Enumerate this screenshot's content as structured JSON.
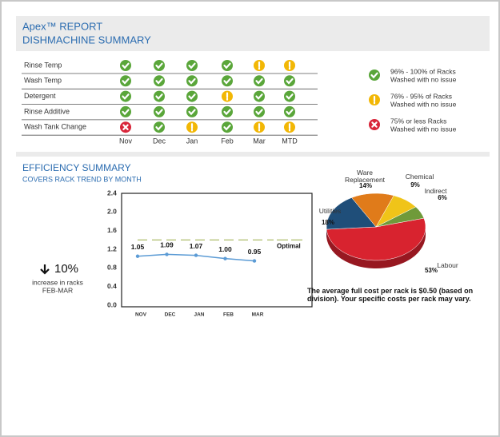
{
  "header": {
    "title": "Apex™ REPORT",
    "subtitle": "DISHMACHINE SUMMARY"
  },
  "status_table": {
    "columns": [
      "Nov",
      "Dec",
      "Jan",
      "Feb",
      "Mar",
      "MTD"
    ],
    "status_colors": {
      "good": "#5aa63a",
      "warn": "#f2b705",
      "bad": "#d8263a"
    },
    "rows": [
      {
        "label": "Rinse Temp",
        "statuses": [
          "good",
          "good",
          "good",
          "good",
          "warn",
          "warn"
        ]
      },
      {
        "label": "Wash Temp",
        "statuses": [
          "good",
          "good",
          "good",
          "good",
          "good",
          "good"
        ]
      },
      {
        "label": "Detergent",
        "statuses": [
          "good",
          "good",
          "good",
          "warn",
          "good",
          "good"
        ]
      },
      {
        "label": "Rinse Additive",
        "statuses": [
          "good",
          "good",
          "good",
          "good",
          "good",
          "good"
        ]
      },
      {
        "label": "Wash Tank Change",
        "statuses": [
          "bad",
          "good",
          "warn",
          "good",
          "warn",
          "warn"
        ]
      }
    ]
  },
  "legend": [
    {
      "status": "good",
      "line1": "96% - 100% of Racks",
      "line2": "Washed with no issue"
    },
    {
      "status": "warn",
      "line1": "76% - 95% of Racks",
      "line2": "Washed with no issue"
    },
    {
      "status": "bad",
      "line1": "75% or less Racks",
      "line2": "Washed with no issue"
    }
  ],
  "efficiency": {
    "title": "EFFICIENCY SUMMARY",
    "subtitle": "COVERS RACK TREND BY MONTH",
    "change": "10%",
    "change_note": "increase in racks",
    "change_period": "FEB-MAR",
    "note": "The average full cost per rack is $0.50 (based on division).  Your specific costs per rack may vary."
  },
  "line_chart": {
    "type": "line",
    "categories": [
      "NOV",
      "DEC",
      "JAN",
      "FEB",
      "MAR"
    ],
    "values": [
      1.05,
      1.09,
      1.07,
      1.0,
      0.95
    ],
    "value_labels": [
      "1.05",
      "1.09",
      "1.07",
      "1.00",
      "0.95"
    ],
    "color": "#5b9bd5",
    "ylim": [
      0,
      2.4
    ],
    "yticks": [
      {
        "value": 0,
        "label": "0.0"
      },
      0.4,
      0.8,
      1.2,
      1.6,
      {
        "value": 2,
        "label": "2.0"
      },
      2.4
    ],
    "optimal": {
      "label": "Optimal",
      "value": 1.4,
      "color": "#a4b65a"
    }
  },
  "pie_chart": {
    "type": "pie",
    "labels": [
      "Labour",
      "Utilities",
      "Ware Replacement",
      "Chemical",
      "Indirect"
    ],
    "values": [
      53,
      18,
      14,
      9,
      6
    ],
    "value_labels": [
      "53%",
      "18%",
      "14%",
      "9%",
      "6%"
    ],
    "colors": [
      "#d8232f",
      "#1f4e79",
      "#e07b1a",
      "#f0c419",
      "#6f9a3a"
    ]
  }
}
